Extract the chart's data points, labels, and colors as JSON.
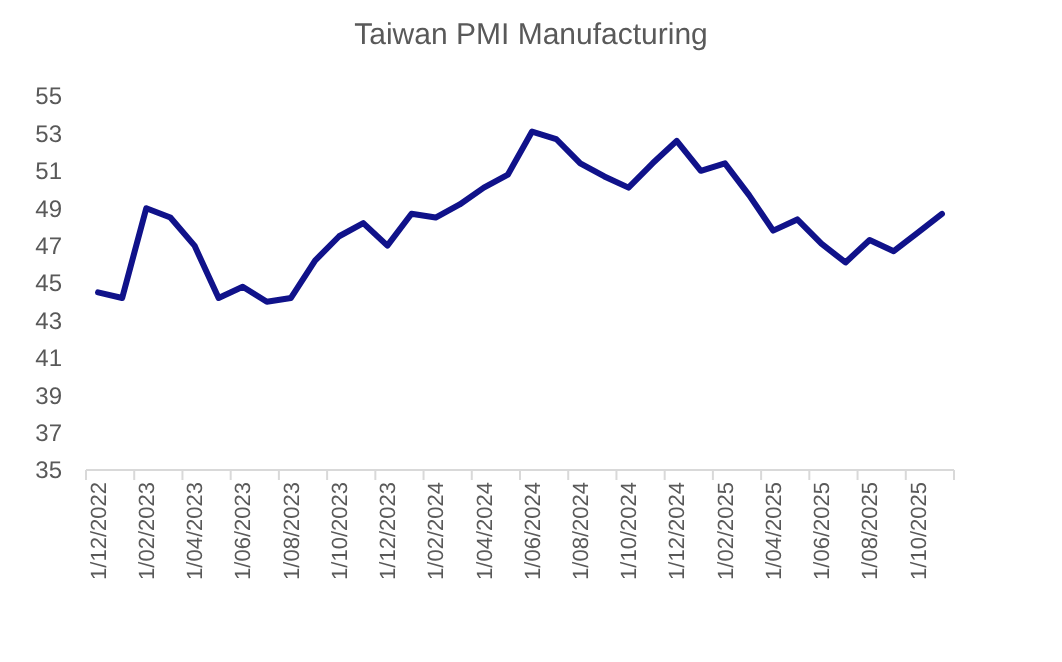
{
  "chart_data": {
    "type": "line",
    "title": "Taiwan PMI Manufacturing",
    "categories": [
      "1/12/2022",
      null,
      "1/02/2023",
      null,
      "1/04/2023",
      null,
      "1/06/2023",
      null,
      "1/08/2023",
      null,
      "1/10/2023",
      null,
      "1/12/2023",
      null,
      "1/02/2024",
      null,
      "1/04/2024",
      null,
      "1/06/2024",
      null,
      "1/08/2024",
      null,
      "1/10/2024",
      null,
      "1/12/2024",
      null,
      "1/02/2025",
      null,
      "1/04/2025",
      null,
      "1/06/2025",
      null,
      "1/08/2025",
      null,
      "1/10/2025",
      null
    ],
    "series": [
      {
        "color": "#10128a",
        "values": [
          44.5,
          44.2,
          49.0,
          48.5,
          47.0,
          44.2,
          44.8,
          44.0,
          44.2,
          46.2,
          47.5,
          48.2,
          47.0,
          48.7,
          48.5,
          49.2,
          50.1,
          50.8,
          53.1,
          52.7,
          51.4,
          50.7,
          50.1,
          51.4,
          52.6,
          51.0,
          51.4,
          49.7,
          47.8,
          48.4,
          47.1,
          46.1,
          47.3,
          46.7,
          47.7,
          48.7
        ]
      }
    ],
    "ylim": [
      35,
      55
    ],
    "yticks": [
      35,
      37,
      39,
      41,
      43,
      45,
      47,
      49,
      51,
      53,
      55
    ],
    "grid": false,
    "marker": "none",
    "line_style": "solid"
  }
}
